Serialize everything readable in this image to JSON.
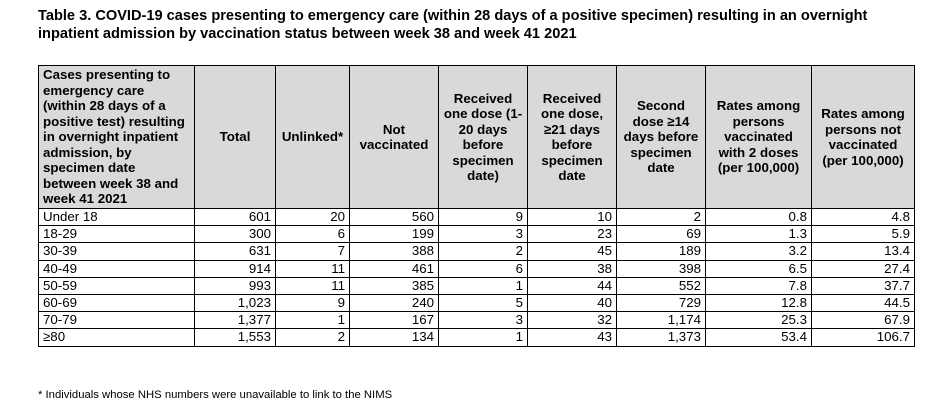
{
  "title": "Table 3. COVID-19 cases presenting to emergency care (within 28 days of a positive specimen) resulting in an overnight inpatient admission by vaccination status between week 38 and week 41 2021",
  "headers": [
    "Cases presenting to emergency care (within 28 days of a positive test) resulting in overnight inpatient admission, by specimen date between week 38 and week 41 2021",
    "Total",
    "Unlinked*",
    "Not vaccinated",
    "Received one dose (1-20 days before specimen date)",
    "Received one dose, ≥21 days before specimen date",
    "Second dose ≥14 days before specimen date",
    "Rates among persons vaccinated with 2 doses (per 100,000)",
    "Rates among persons not vaccinated (per 100,000)"
  ],
  "rows": [
    [
      "Under 18",
      "601",
      "20",
      "560",
      "9",
      "10",
      "2",
      "0.8",
      "4.8"
    ],
    [
      "18-29",
      "300",
      "6",
      "199",
      "3",
      "23",
      "69",
      "1.3",
      "5.9"
    ],
    [
      "30-39",
      "631",
      "7",
      "388",
      "2",
      "45",
      "189",
      "3.2",
      "13.4"
    ],
    [
      "40-49",
      "914",
      "11",
      "461",
      "6",
      "38",
      "398",
      "6.5",
      "27.4"
    ],
    [
      "50-59",
      "993",
      "11",
      "385",
      "1",
      "44",
      "552",
      "7.8",
      "37.7"
    ],
    [
      "60-69",
      "1,023",
      "9",
      "240",
      "5",
      "40",
      "729",
      "12.8",
      "44.5"
    ],
    [
      "70-79",
      "1,377",
      "1",
      "167",
      "3",
      "32",
      "1,174",
      "25.3",
      "67.9"
    ],
    [
      "≥80",
      "1,553",
      "2",
      "134",
      "1",
      "43",
      "1,373",
      "53.4",
      "106.7"
    ]
  ],
  "footnote": "* Individuals whose NHS numbers were unavailable to link to the NIMS"
}
